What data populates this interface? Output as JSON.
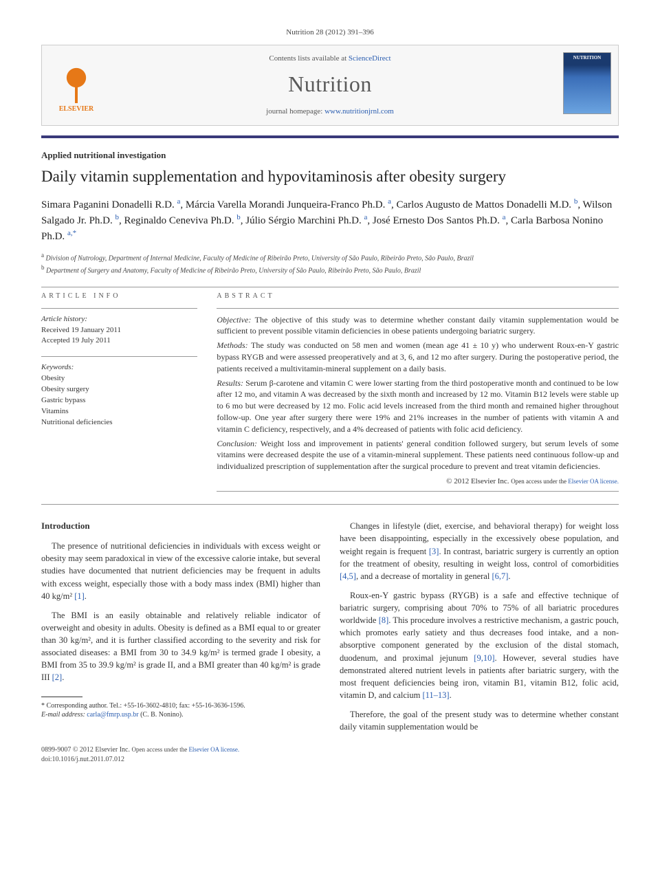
{
  "citation": "Nutrition 28 (2012) 391–396",
  "masthead": {
    "publisher": "ELSEVIER",
    "contents_prefix": "Contents lists available at ",
    "contents_link": "ScienceDirect",
    "journal": "Nutrition",
    "homepage_prefix": "journal homepage: ",
    "homepage_link": "www.nutritionjrnl.com",
    "cover_label": "NUTRITION"
  },
  "article": {
    "type": "Applied nutritional investigation",
    "title": "Daily vitamin supplementation and hypovitaminosis after obesity surgery",
    "authors_html": "Simara Paganini Donadelli R.D. <sup>a</sup>, Márcia Varella Morandi Junqueira-Franco Ph.D. <sup>a</sup>, Carlos Augusto de Mattos Donadelli M.D. <sup>b</sup>, Wilson Salgado Jr. Ph.D. <sup>b</sup>, Reginaldo Ceneviva Ph.D. <sup>b</sup>, Júlio Sérgio Marchini Ph.D. <sup>a</sup>, José Ernesto Dos Santos Ph.D. <sup>a</sup>, Carla Barbosa Nonino Ph.D. <sup>a,*</sup>",
    "affiliations": [
      {
        "sup": "a",
        "text": "Division of Nutrology, Department of Internal Medicine, Faculty of Medicine of Ribeirão Preto, University of São Paulo, Ribeirão Preto, São Paulo, Brazil"
      },
      {
        "sup": "b",
        "text": "Department of Surgery and Anatomy, Faculty of Medicine of Ribeirão Preto, University of São Paulo, Ribeirão Preto, São Paulo, Brazil"
      }
    ]
  },
  "info": {
    "heading": "ARTICLE INFO",
    "history_hdr": "Article history:",
    "received": "Received 19 January 2011",
    "accepted": "Accepted 19 July 2011",
    "keywords_hdr": "Keywords:",
    "keywords": [
      "Obesity",
      "Obesity surgery",
      "Gastric bypass",
      "Vitamins",
      "Nutritional deficiencies"
    ]
  },
  "abstract": {
    "heading": "ABSTRACT",
    "objective_label": "Objective:",
    "objective": "The objective of this study was to determine whether constant daily vitamin supplementation would be sufficient to prevent possible vitamin deficiencies in obese patients undergoing bariatric surgery.",
    "methods_label": "Methods:",
    "methods": "The study was conducted on 58 men and women (mean age 41 ± 10 y) who underwent Roux-en-Y gastric bypass RYGB and were assessed preoperatively and at 3, 6, and 12 mo after surgery. During the postoperative period, the patients received a multivitamin-mineral supplement on a daily basis.",
    "results_label": "Results:",
    "results": "Serum β-carotene and vitamin C were lower starting from the third postoperative month and continued to be low after 12 mo, and vitamin A was decreased by the sixth month and increased by 12 mo. Vitamin B12 levels were stable up to 6 mo but were decreased by 12 mo. Folic acid levels increased from the third month and remained higher throughout follow-up. One year after surgery there were 19% and 21% increases in the number of patients with vitamin A and vitamin C deficiency, respectively, and a 4% decreased of patients with folic acid deficiency.",
    "conclusion_label": "Conclusion:",
    "conclusion": "Weight loss and improvement in patients' general condition followed surgery, but serum levels of some vitamins were decreased despite the use of a vitamin-mineral supplement. These patients need continuous follow-up and individualized prescription of supplementation after the surgical procedure to prevent and treat vitamin deficiencies.",
    "copyright": "© 2012 Elsevier Inc. ",
    "copyright_open": "Open access under the ",
    "copyright_link": "Elsevier OA license."
  },
  "body": {
    "intro_hdr": "Introduction",
    "p1": "The presence of nutritional deficiencies in individuals with excess weight or obesity may seem paradoxical in view of the excessive calorie intake, but several studies have documented that nutrient deficiencies may be frequent in adults with excess weight, especially those with a body mass index (BMI) higher than 40 kg/m² ",
    "c1": "[1]",
    "p2a": "The BMI is an easily obtainable and relatively reliable indicator of overweight and obesity in adults. Obesity is defined as a BMI equal to or greater than 30 kg/m², and it is further classified according to the severity and risk for associated diseases: a BMI from 30 to 34.9 kg/m² is termed grade I obesity, a BMI from 35 to 39.9 kg/m² is grade II, and a BMI greater than 40 kg/m² is grade III ",
    "c2": "[2]",
    "p3": "Changes in lifestyle (diet, exercise, and behavioral therapy) for weight loss have been disappointing, especially in the excessively obese population, and weight regain is frequent ",
    "c3": "[3]",
    "p3b": ". In contrast, bariatric surgery is currently an option for the treatment of obesity, resulting in weight loss, control of comorbidities ",
    "c45": "[4,5]",
    "p3c": ", and a decrease of mortality in general ",
    "c67": "[6,7]",
    "p4a": "Roux-en-Y gastric bypass (RYGB) is a safe and effective technique of bariatric surgery, comprising about 70% to 75% of all bariatric procedures worldwide ",
    "c8": "[8]",
    "p4b": ". This procedure involves a restrictive mechanism, a gastric pouch, which promotes early satiety and thus decreases food intake, and a non-absorptive component generated by the exclusion of the distal stomach, duodenum, and proximal jejunum ",
    "c910": "[9,10]",
    "p4c": ". However, several studies have demonstrated altered nutrient levels in patients after bariatric surgery, with the most frequent deficiencies being iron, vitamin B1, vitamin B12, folic acid, vitamin D, and calcium ",
    "c1113": "[11–13]",
    "p5": "Therefore, the goal of the present study was to determine whether constant daily vitamin supplementation would be"
  },
  "footnote": {
    "corr": "* Corresponding author. Tel.: +55-16-3602-4810; fax: +55-16-3636-1596.",
    "email_label": "E-mail address: ",
    "email": "carla@fmrp.usp.br",
    "email_who": " (C. B. Nonino)."
  },
  "footer": {
    "issn": "0899-9007 © 2012 Elsevier Inc. ",
    "open": "Open access under the ",
    "open_link": "Elsevier OA license.",
    "doi": "doi:10.1016/j.nut.2011.07.012"
  },
  "colors": {
    "link": "#2a5db0",
    "rule": "#3a3a7a",
    "publisher": "#e67817"
  }
}
